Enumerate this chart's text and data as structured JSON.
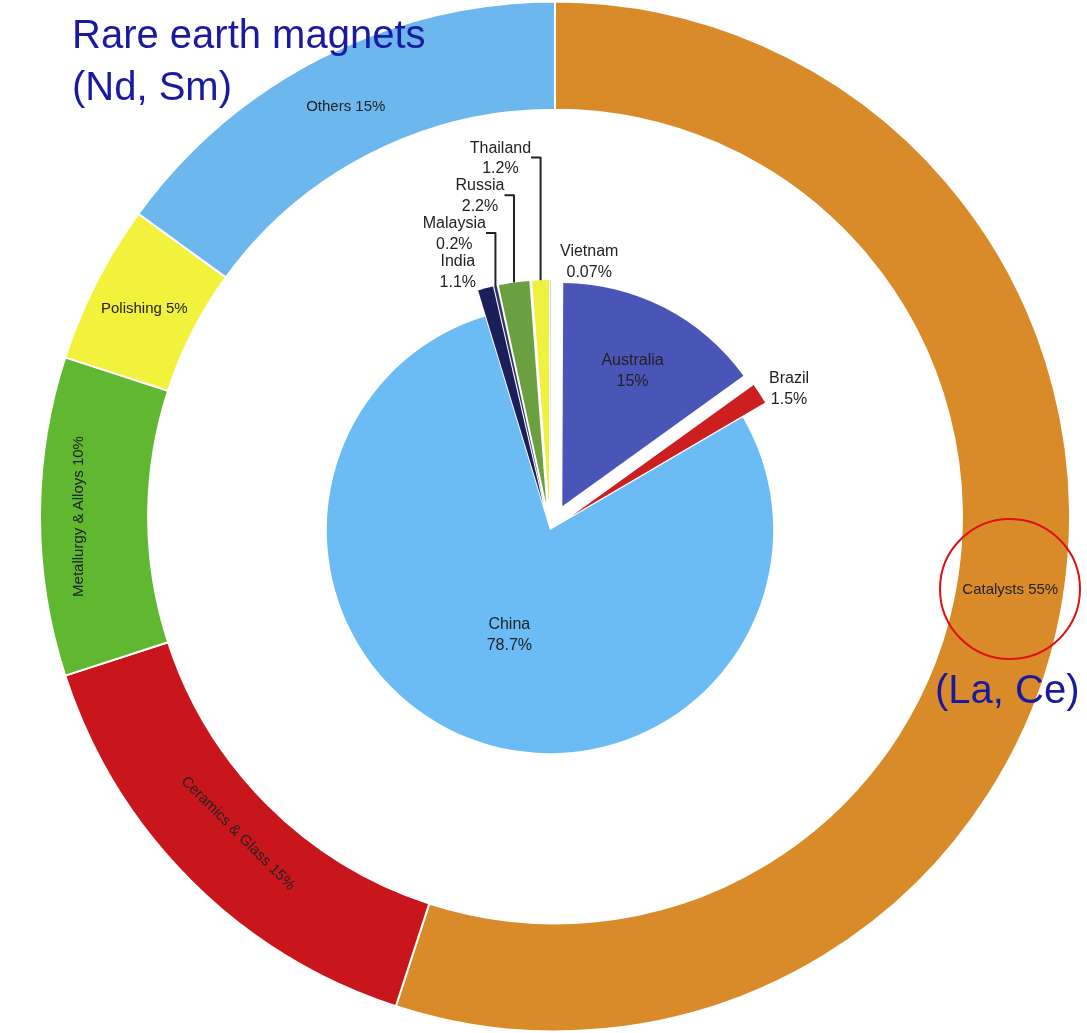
{
  "chart_data": [
    {
      "type": "donut",
      "categories": [
        "Catalysts",
        "Ceramics & Glass",
        "Metallurgy & Alloys",
        "Polishing",
        "Others"
      ],
      "values": [
        55,
        15,
        10,
        5,
        15
      ],
      "value_labels": [
        "55%",
        "15%",
        "10%",
        "5%",
        "15%"
      ],
      "colors": [
        "#d98b2a",
        "#c8161c",
        "#5fb830",
        "#f2f23c",
        "#6cb8ee"
      ],
      "annotations": [
        "Rare earth magnets\n(Nd, Sm)",
        "(La, Ce)"
      ],
      "legend": false
    },
    {
      "type": "pie",
      "categories": [
        "Vietnam",
        "Australia",
        "Brazil",
        "China",
        "India",
        "Malaysia",
        "Russia",
        "Thailand"
      ],
      "values": [
        0.07,
        15,
        1.5,
        78.7,
        1.1,
        0.2,
        2.2,
        1.2
      ],
      "value_labels": [
        "0.07%",
        "15%",
        "1.5%",
        "78.7%",
        "1.1%",
        "0.2%",
        "2.2%",
        "1.2%"
      ],
      "colors": [
        "#c8d4e8",
        "#4a55b8",
        "#cc2020",
        "#6bbbf5",
        "#1a1f5a",
        "#333366",
        "#6aa040",
        "#f0f040"
      ],
      "legend": false
    }
  ]
}
